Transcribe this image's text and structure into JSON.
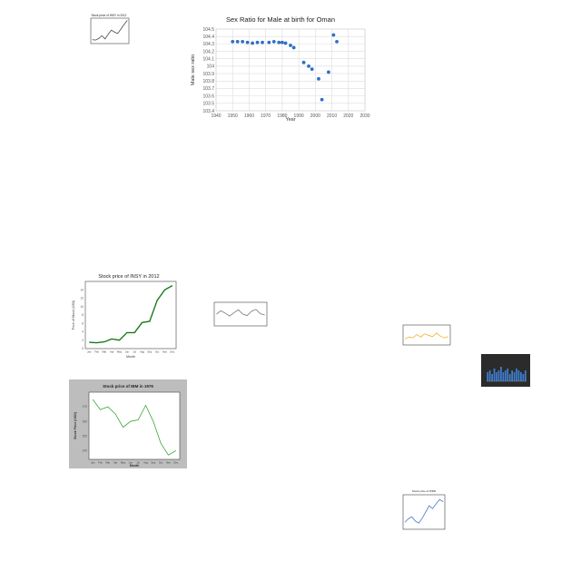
{
  "charts": [
    {
      "type": "line",
      "title": "Stock price of INSY in 2012",
      "xlabel": "",
      "ylabel": "",
      "x": [
        1,
        2,
        3,
        4,
        5,
        6,
        7,
        8,
        9,
        10,
        11,
        12
      ],
      "series": [
        {
          "values": [
            2.0,
            1.8,
            2.6,
            4.0,
            2.4,
            4.8,
            6.9,
            5.8,
            5.2,
            7.5,
            9.8,
            11.9
          ]
        }
      ],
      "ylim": [
        0,
        13
      ],
      "color": "#4a4a4a",
      "background": "#ffffff"
    },
    {
      "type": "scatter",
      "title": "Sex Ratio for Male at birth for Oman",
      "xlabel": "Year",
      "ylabel": "Male sex ratio",
      "x": [
        1950,
        1953,
        1956,
        1959,
        1962,
        1965,
        1968,
        1972,
        1975,
        1978,
        1980,
        1982,
        1985,
        1987,
        1993,
        1996,
        1998,
        2002,
        2004,
        2008,
        2011,
        2013
      ],
      "series": [
        {
          "values": [
            104.33,
            104.33,
            104.33,
            104.32,
            104.31,
            104.32,
            104.32,
            104.32,
            104.33,
            104.32,
            104.32,
            104.31,
            104.28,
            104.25,
            104.05,
            104.0,
            103.96,
            103.83,
            103.55,
            103.92,
            104.42,
            104.33
          ]
        }
      ],
      "xlim": [
        1940,
        2030
      ],
      "ylim": [
        103.4,
        104.5
      ],
      "xticks": [
        "1940",
        "1950",
        "1960",
        "1970",
        "1980",
        "1990",
        "2000",
        "2010",
        "2020",
        "2030"
      ],
      "yticks": [
        "103.4",
        "103.5",
        "103.6",
        "103.7",
        "103.8",
        "103.9",
        "104",
        "104.1",
        "104.2",
        "104.3",
        "104.4",
        "104.5"
      ],
      "grid": true,
      "color": "#2e6fc4",
      "background": "#ffffff"
    },
    {
      "type": "line",
      "title": "Stock price of INSY in 2012",
      "xlabel": "Month",
      "ylabel": "Price of Stock (USD)",
      "categories": [
        "Jan",
        "Feb",
        "Mar",
        "Apr",
        "May",
        "Jun",
        "Jul",
        "Aug",
        "Sep",
        "Oct",
        "Nov",
        "Dec"
      ],
      "series": [
        {
          "values": [
            1.5,
            1.4,
            1.6,
            2.3,
            2.0,
            3.8,
            3.8,
            6.2,
            6.5,
            11.5,
            14.0,
            15.0
          ]
        }
      ],
      "ylim": [
        0,
        16
      ],
      "yticks": [
        "0",
        "2",
        "4",
        "6",
        "8",
        "10",
        "12",
        "14"
      ],
      "grid": false,
      "color": "#1a7a1a",
      "background": "#ffffff"
    },
    {
      "type": "line",
      "title": "",
      "xlabel": "",
      "ylabel": "",
      "x": [
        1,
        2,
        3,
        4,
        5,
        6,
        7,
        8,
        9,
        10,
        11,
        12
      ],
      "series": [
        {
          "values": [
            5.0,
            6.4,
            5.4,
            4.2,
            5.6,
            6.8,
            5.0,
            4.4,
            6.2,
            7.0,
            5.2,
            4.6
          ]
        }
      ],
      "ylim": [
        0,
        10
      ],
      "color": "#777777",
      "background": "#ffffff"
    },
    {
      "type": "line",
      "title": "",
      "xlabel": "",
      "ylabel": "",
      "x": [
        1,
        2,
        3,
        4,
        5,
        6,
        7,
        8,
        9,
        10,
        11,
        12
      ],
      "series": [
        {
          "values": [
            3.0,
            4.0,
            3.6,
            5.2,
            4.0,
            5.6,
            4.8,
            4.2,
            6.0,
            4.4,
            3.6,
            4.2
          ]
        }
      ],
      "ylim": [
        0,
        10
      ],
      "color": "#f0b428",
      "background": "#ffffff"
    },
    {
      "type": "line",
      "title": "Stock price of IBM in 1976",
      "xlabel": "Month",
      "ylabel": "Stock Price (USD)",
      "categories": [
        "Jan",
        "Feb",
        "Mar",
        "Apr",
        "May",
        "Jun",
        "Jul",
        "Aug",
        "Sep",
        "Oct",
        "Nov",
        "Dec"
      ],
      "series": [
        {
          "values": [
            275,
            268,
            270,
            265,
            256,
            260,
            261,
            271,
            260,
            245,
            237,
            240
          ]
        }
      ],
      "ylim": [
        234,
        280
      ],
      "yticks": [
        "240",
        "250",
        "260",
        "270"
      ],
      "grid": false,
      "color": "#3aa83a",
      "background": "#ffffff",
      "frame_color": "#bdbdbd"
    },
    {
      "type": "bar",
      "title": "",
      "xlabel": "",
      "ylabel": "",
      "categories": [
        "1",
        "2",
        "3",
        "4",
        "5",
        "6",
        "7",
        "8",
        "9",
        "10",
        "11",
        "12",
        "13",
        "14",
        "15",
        "16",
        "17",
        "18"
      ],
      "series": [
        {
          "values": [
            5,
            6,
            4,
            7,
            5,
            6,
            8,
            5,
            6,
            7,
            4,
            6,
            5,
            7,
            6,
            5,
            4,
            6
          ]
        }
      ],
      "ylim": [
        0,
        10
      ],
      "color": "#3f7fd0",
      "background": "#2b2b2b"
    },
    {
      "type": "line",
      "title": "Stock price of WDR",
      "xlabel": "",
      "ylabel": "",
      "x": [
        1,
        2,
        3,
        4,
        5,
        6,
        7,
        8,
        9,
        10,
        11,
        12
      ],
      "series": [
        {
          "values": [
            2.0,
            3.0,
            3.6,
            2.4,
            1.8,
            3.2,
            5.0,
            6.8,
            6.0,
            7.4,
            8.6,
            8.0
          ]
        }
      ],
      "ylim": [
        0,
        10
      ],
      "color": "#4a78c8",
      "background": "#ffffff"
    }
  ]
}
